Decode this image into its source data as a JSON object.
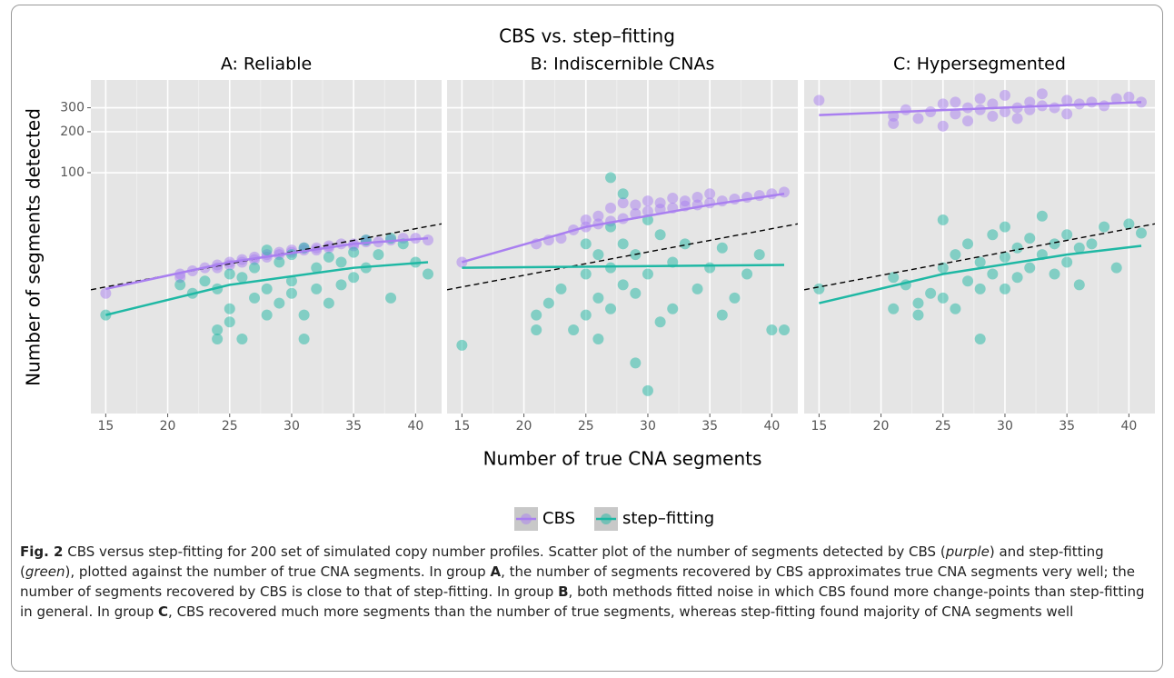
{
  "chart_data": {
    "type": "scatter",
    "title": "CBS vs. step–fitting",
    "xlabel": "Number of true CNA segments",
    "ylabel": "Number of segments detected",
    "xlim": [
      13.8,
      42.1
    ],
    "ylim": [
      1.7,
      480
    ],
    "log_y": true,
    "grid": true,
    "legend": "bottom",
    "xticks": [
      15,
      20,
      25,
      30,
      35,
      40
    ],
    "yticks": [
      100,
      200,
      300
    ],
    "panels": [
      {
        "title": "A: Reliable",
        "series": [
          {
            "name": "CBS",
            "color": "#a97ff0",
            "x": [
              15,
              21,
              21,
              22,
              23,
              24,
              24,
              25,
              25,
              26,
              26,
              27,
              27,
              28,
              28,
              29,
              29,
              30,
              30,
              31,
              31,
              32,
              32,
              33,
              33,
              34,
              35,
              35,
              36,
              36,
              37,
              38,
              39,
              40,
              41
            ],
            "y": [
              13,
              18,
              17,
              19,
              20,
              21,
              20,
              22,
              21,
              23,
              22,
              24,
              23,
              25,
              24,
              25,
              26,
              26,
              27,
              27,
              28,
              28,
              27,
              29,
              28,
              30,
              30,
              29,
              31,
              32,
              31,
              32,
              33,
              33,
              32
            ],
            "fit_x": [
              15,
              25,
              35,
              41
            ],
            "fit_y": [
              14,
              22,
              30,
              33
            ]
          },
          {
            "name": "step–fitting",
            "color": "#1fb8a4",
            "x": [
              15,
              21,
              22,
              23,
              24,
              24,
              24,
              25,
              25,
              25,
              26,
              26,
              27,
              27,
              28,
              28,
              28,
              29,
              29,
              30,
              30,
              30,
              31,
              31,
              31,
              32,
              32,
              33,
              33,
              34,
              34,
              35,
              35,
              36,
              36,
              37,
              38,
              38,
              39,
              40,
              41
            ],
            "y": [
              9,
              15,
              13,
              16,
              7,
              6,
              14,
              18,
              10,
              8,
              6,
              17,
              20,
              12,
              27,
              14,
              9,
              22,
              11,
              25,
              13,
              16,
              28,
              9,
              6,
              20,
              14,
              24,
              11,
              22,
              15,
              26,
              17,
              32,
              20,
              25,
              33,
              12,
              30,
              22,
              18
            ],
            "fit_x": [
              15,
              25,
              35,
              41
            ],
            "fit_y": [
              9,
              15,
              20,
              22
            ]
          }
        ]
      },
      {
        "title": "B: Indiscernible CNAs",
        "series": [
          {
            "name": "CBS",
            "color": "#a97ff0",
            "x": [
              15,
              21,
              22,
              23,
              24,
              25,
              25,
              26,
              26,
              27,
              27,
              28,
              28,
              29,
              29,
              30,
              30,
              31,
              31,
              32,
              32,
              33,
              33,
              34,
              34,
              35,
              35,
              36,
              37,
              38,
              39,
              40,
              41
            ],
            "y": [
              22,
              30,
              32,
              33,
              38,
              40,
              45,
              42,
              48,
              44,
              55,
              46,
              60,
              50,
              58,
              52,
              62,
              54,
              60,
              55,
              65,
              57,
              62,
              58,
              66,
              60,
              70,
              62,
              64,
              66,
              68,
              70,
              72
            ],
            "fit_x": [
              15,
              25,
              35,
              41
            ],
            "fit_y": [
              22,
              40,
              58,
              70
            ]
          },
          {
            "name": "step–fitting",
            "color": "#1fb8a4",
            "x": [
              15,
              21,
              21,
              22,
              23,
              24,
              25,
              25,
              25,
              26,
              26,
              26,
              27,
              27,
              27,
              27,
              28,
              28,
              28,
              29,
              29,
              29,
              30,
              30,
              30,
              31,
              31,
              32,
              32,
              33,
              34,
              35,
              36,
              36,
              37,
              38,
              39,
              40,
              41
            ],
            "y": [
              5.4,
              7,
              9,
              11,
              14,
              7,
              30,
              18,
              9,
              25,
              12,
              6,
              92,
              40,
              20,
              10,
              70,
              30,
              15,
              4,
              25,
              13,
              2.5,
              45,
              18,
              35,
              8,
              22,
              10,
              30,
              14,
              20,
              9,
              28,
              12,
              18,
              25,
              7,
              7
            ],
            "fit_x": [
              15,
              41
            ],
            "fit_y": [
              20,
              21
            ]
          }
        ]
      },
      {
        "title": "C: Hypersegmented",
        "series": [
          {
            "name": "CBS",
            "color": "#a97ff0",
            "x": [
              15,
              21,
              21,
              22,
              23,
              24,
              25,
              25,
              26,
              26,
              27,
              27,
              28,
              28,
              29,
              29,
              30,
              30,
              31,
              31,
              32,
              32,
              33,
              33,
              34,
              35,
              35,
              36,
              37,
              38,
              39,
              40,
              41
            ],
            "y": [
              340,
              260,
              230,
              290,
              250,
              280,
              220,
              320,
              270,
              330,
              240,
              300,
              290,
              350,
              260,
              320,
              280,
              370,
              300,
              250,
              330,
              290,
              380,
              310,
              300,
              340,
              270,
              320,
              330,
              310,
              350,
              360,
              330
            ],
            "fit_x": [
              15,
              41
            ],
            "fit_y": [
              265,
              330
            ]
          },
          {
            "name": "step–fitting",
            "color": "#1fb8a4",
            "x": [
              15,
              21,
              21,
              22,
              23,
              23,
              24,
              25,
              25,
              25,
              26,
              26,
              27,
              27,
              28,
              28,
              28,
              29,
              29,
              30,
              30,
              30,
              31,
              31,
              32,
              32,
              33,
              33,
              34,
              34,
              35,
              35,
              36,
              36,
              37,
              38,
              39,
              40,
              41
            ],
            "y": [
              14,
              17,
              10,
              15,
              11,
              9,
              13,
              45,
              20,
              12,
              25,
              10,
              30,
              16,
              22,
              14,
              6,
              35,
              18,
              40,
              24,
              14,
              28,
              17,
              33,
              20,
              48,
              25,
              30,
              18,
              35,
              22,
              28,
              15,
              30,
              40,
              20,
              42,
              36
            ],
            "fit_x": [
              15,
              25,
              35,
              41
            ],
            "fit_y": [
              11,
              18,
              25,
              29
            ]
          }
        ]
      }
    ]
  },
  "caption": [
    "Fig. 2",
    " CBS versus step-fitting for 200 set of simulated copy number profiles. Scatter plot of the number of segments detected by CBS (",
    "purple",
    ") and step-fitting (",
    "green",
    "), plotted against the number of true CNA segments. In group ",
    "A",
    ", the number of segments recovered by CBS approximates true CNA segments very well; the number of segments recovered by CBS is close to that of step-fitting. In group ",
    "B",
    ", both methods fitted noise in which CBS found more change-points than step-fitting in general. In group ",
    "C",
    ", CBS recovered much more segments than the number of true segments, whereas step-fitting found majority of CNA segments well"
  ]
}
